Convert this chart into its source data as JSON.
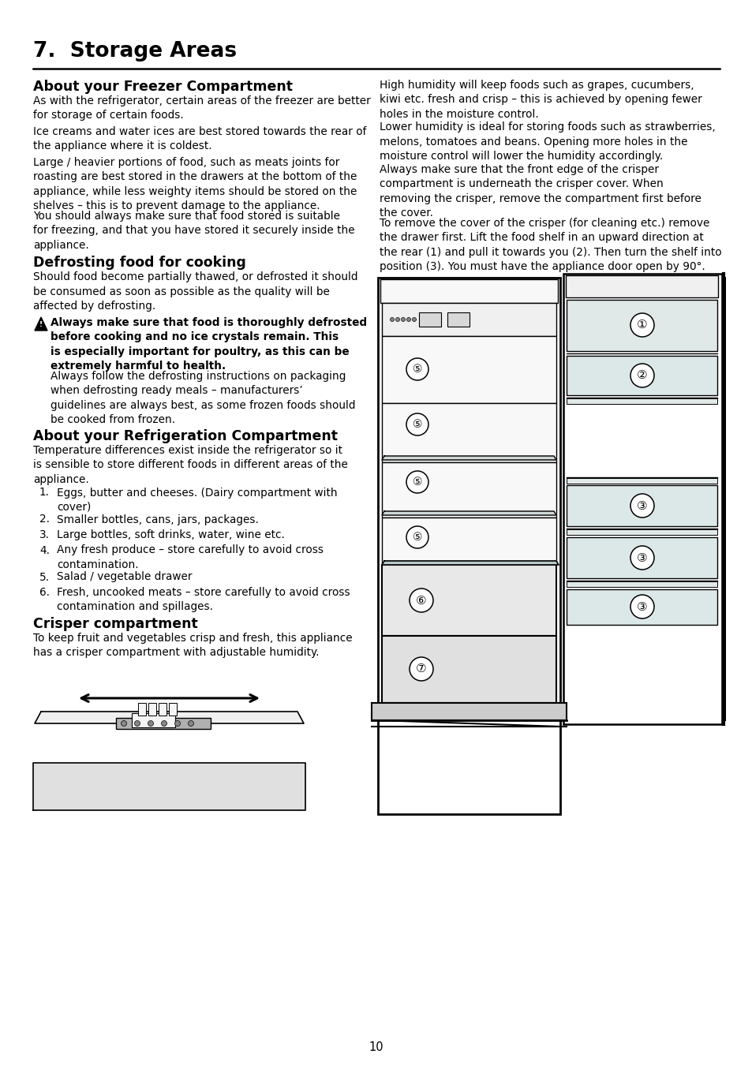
{
  "page_number": "10",
  "background_color": "#ffffff",
  "text_color": "#000000",
  "title": "7.  Storage Areas",
  "section1_heading": "About your Freezer Compartment",
  "section1_col1_paragraphs": [
    "As with the refrigerator, certain areas of the freezer are better\nfor storage of certain foods.",
    "Ice creams and water ices are best stored towards the rear of\nthe appliance where it is coldest.",
    "Large / heavier portions of food, such as meats joints for\nroasting are best stored in the drawers at the bottom of the\nappliance, while less weighty items should be stored on the\nshelves – this is to prevent damage to the appliance.",
    "You should always make sure that food stored is suitable\nfor freezing, and that you have stored it securely inside the\nappliance."
  ],
  "section1_col2_paragraphs": [
    "High humidity will keep foods such as grapes, cucumbers,\nkiwi etc. fresh and crisp – this is achieved by opening fewer\nholes in the moisture control.",
    "Lower humidity is ideal for storing foods such as strawberries,\nmelons, tomatoes and beans. Opening more holes in the\nmoisture control will lower the humidity accordingly.",
    "Always make sure that the front edge of the crisper\ncompartment is underneath the crisper cover. When\nremoving the crisper, remove the compartment first before\nthe cover.",
    "To remove the cover of the crisper (for cleaning etc.) remove\nthe drawer first. Lift the food shelf in an upward direction at\nthe rear (1) and pull it towards you (2). Then turn the shelf into\nposition (3). You must have the appliance door open by 90°."
  ],
  "section2_heading": "Defrosting food for cooking",
  "section2_paragraphs": [
    "Should food become partially thawed, or defrosted it should\nbe consumed as soon as possible as the quality will be\naffected by defrosting."
  ],
  "warning_bold": "Always make sure that food is thoroughly defrosted\nbefore cooking and no ice crystals remain. This\nis especially important for poultry, as this can be\nextremely harmful to health.",
  "warning_followup": "Always follow the defrosting instructions on packaging\nwhen defrosting ready meals – manufacturers’\nguidelines are always best, as some frozen foods should\nbe cooked from frozen.",
  "section3_heading": "About your Refrigeration Compartment",
  "section3_para": "Temperature differences exist inside the refrigerator so it\nis sensible to store different foods in different areas of the\nappliance.",
  "section3_list": [
    "Eggs, butter and cheeses. (Dairy compartment with\ncover)",
    "Smaller bottles, cans, jars, packages.",
    "Large bottles, soft drinks, water, wine etc.",
    "Any fresh produce – store carefully to avoid cross\ncontamination.",
    "Salad / vegetable drawer",
    "Fresh, uncooked meats – store carefully to avoid cross\ncontamination and spillages."
  ],
  "section4_heading": "Crisper compartment",
  "section4_para": "To keep fruit and vegetables crisp and fresh, this appliance\nhas a crisper compartment with adjustable humidity."
}
